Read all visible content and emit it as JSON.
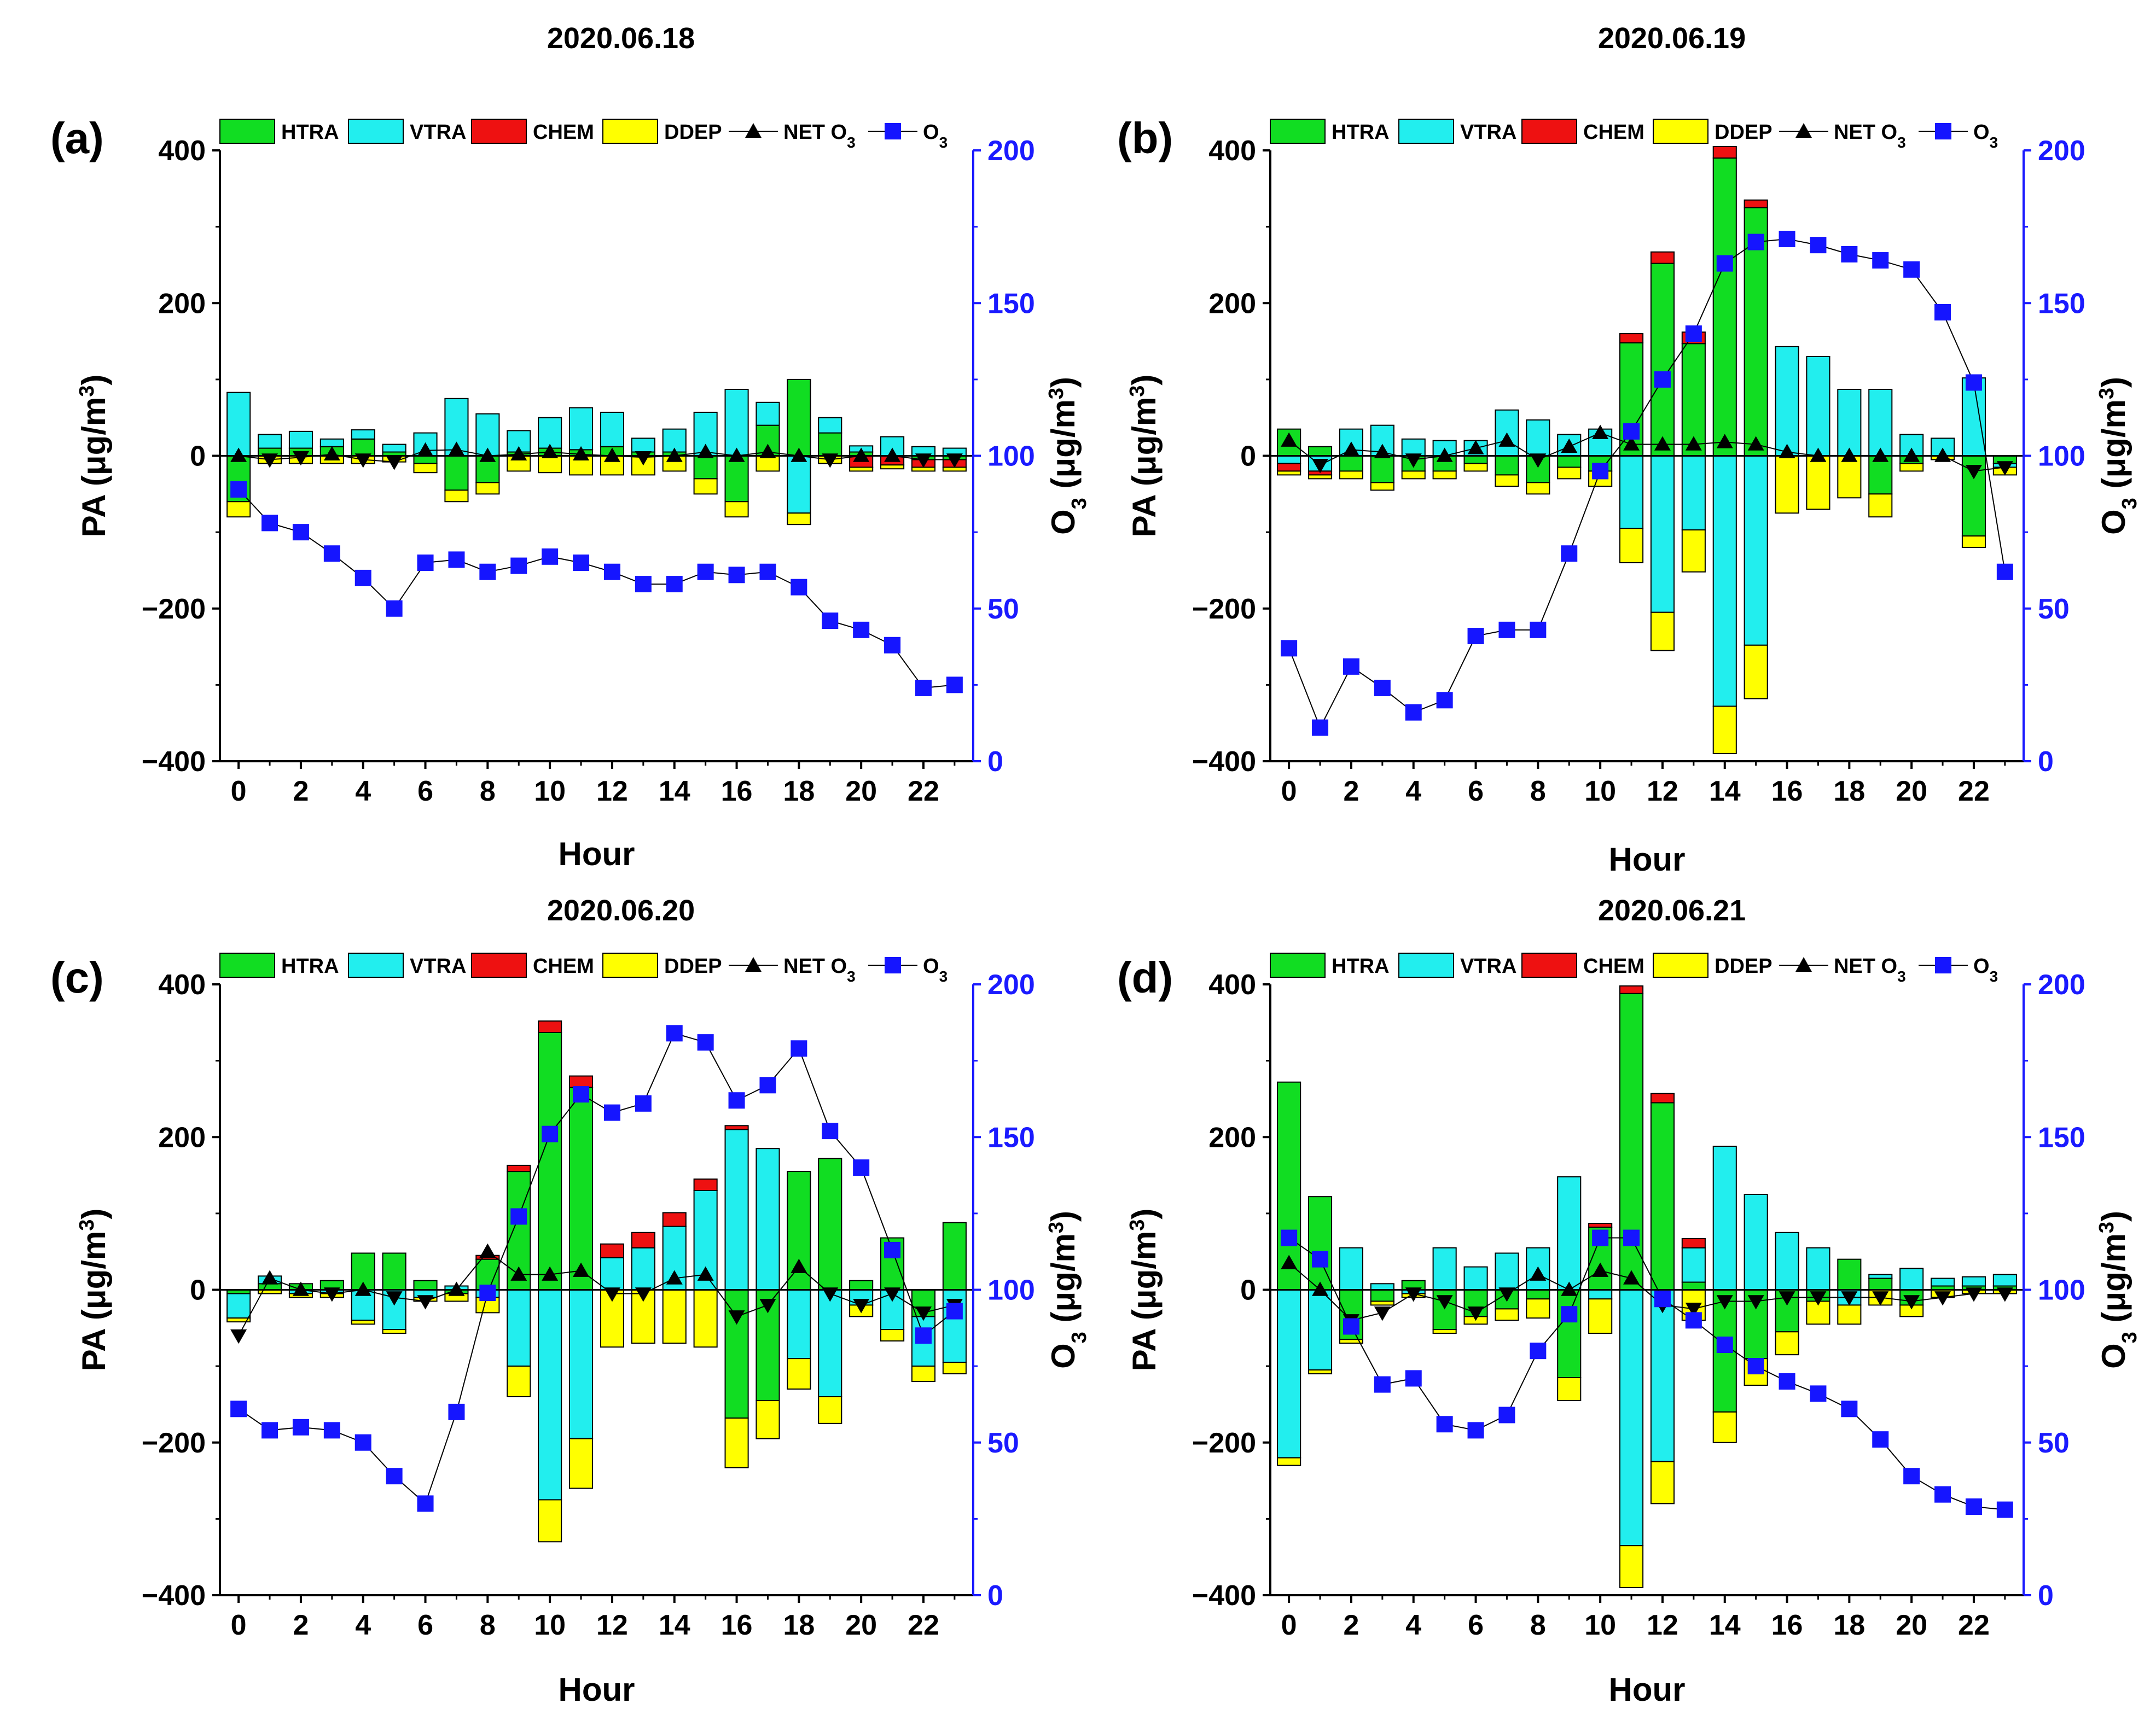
{
  "colors": {
    "HTRA": "#11dd22",
    "VTRA": "#22eeee",
    "CHEM": "#ee1111",
    "DDEP": "#ffff00",
    "NET": "#000000",
    "O3": "#1515ff",
    "axis_right": "#1a1aff"
  },
  "legend": {
    "htra": "HTRA",
    "vtra": "VTRA",
    "chem": "CHEM",
    "ddep": "DDEP",
    "net": "NET O",
    "o3": "O",
    "sub": "3"
  },
  "axes": {
    "left_label": "PA (μg/m",
    "left_sup": "3",
    "left_close": ")",
    "right_label": "O",
    "right_sub": "3",
    "right_mid": " (μg/m",
    "right_sup": "3",
    "right_close": ")",
    "xlabel": "Hour"
  },
  "chart_data": [
    {
      "type": "bar",
      "panel": "(a)",
      "title": "2020.06.18",
      "x": [
        0,
        1,
        2,
        3,
        4,
        5,
        6,
        7,
        8,
        9,
        10,
        11,
        12,
        13,
        14,
        15,
        16,
        17,
        18,
        19,
        20,
        21,
        22,
        23
      ],
      "xticks": [
        0,
        2,
        4,
        6,
        8,
        10,
        12,
        14,
        16,
        18,
        20,
        22
      ],
      "xlim": [
        -0.6,
        23.6
      ],
      "ylim": [
        -400,
        400
      ],
      "yticks": [
        -400,
        -200,
        0,
        200,
        400
      ],
      "ylim_right": [
        0,
        200
      ],
      "yticks_right": [
        0,
        50,
        100,
        150,
        200
      ],
      "series": [
        {
          "name": "HTRA",
          "values": [
            -60,
            10,
            10,
            12,
            22,
            5,
            -10,
            -45,
            -35,
            5,
            10,
            8,
            12,
            5,
            5,
            -30,
            -60,
            40,
            100,
            30,
            5,
            0,
            -5,
            -5
          ]
        },
        {
          "name": "VTRA",
          "values": [
            83,
            18,
            22,
            10,
            12,
            10,
            30,
            75,
            55,
            28,
            40,
            55,
            45,
            18,
            30,
            57,
            87,
            30,
            -75,
            20,
            8,
            25,
            12,
            10
          ]
        },
        {
          "name": "CHEM",
          "values": [
            0,
            0,
            0,
            0,
            0,
            0,
            0,
            0,
            0,
            0,
            0,
            0,
            0,
            0,
            0,
            0,
            0,
            0,
            0,
            0,
            -15,
            -12,
            -10,
            -10
          ]
        },
        {
          "name": "DDEP",
          "values": [
            -20,
            -10,
            -10,
            -10,
            -10,
            -8,
            -12,
            -15,
            -15,
            -20,
            -22,
            -25,
            -25,
            -25,
            -20,
            -20,
            -20,
            -20,
            -15,
            -10,
            -5,
            -5,
            -5,
            -5
          ]
        },
        {
          "name": "NET O3",
          "values": [
            0,
            -5,
            -2,
            2,
            -5,
            -8,
            7,
            8,
            0,
            2,
            5,
            2,
            0,
            -2,
            0,
            5,
            0,
            5,
            0,
            -5,
            0,
            0,
            -5,
            -5
          ]
        },
        {
          "name": "O3",
          "axis": "right",
          "values": [
            89,
            78,
            75,
            68,
            60,
            50,
            65,
            66,
            62,
            64,
            67,
            65,
            62,
            58,
            58,
            62,
            61,
            62,
            57,
            46,
            43,
            38,
            24,
            25
          ]
        }
      ]
    },
    {
      "type": "bar",
      "panel": "(b)",
      "title": "2020.06.19",
      "x": [
        0,
        1,
        2,
        3,
        4,
        5,
        6,
        7,
        8,
        9,
        10,
        11,
        12,
        13,
        14,
        15,
        16,
        17,
        18,
        19,
        20,
        21,
        22,
        23
      ],
      "xticks": [
        0,
        2,
        4,
        6,
        8,
        10,
        12,
        14,
        16,
        18,
        20,
        22
      ],
      "xlim": [
        -0.6,
        23.6
      ],
      "ylim": [
        -400,
        400
      ],
      "yticks": [
        -400,
        -200,
        0,
        200,
        400
      ],
      "ylim_right": [
        0,
        200
      ],
      "yticks_right": [
        0,
        50,
        100,
        150,
        200
      ],
      "series": [
        {
          "name": "HTRA",
          "values": [
            35,
            12,
            -20,
            -35,
            -20,
            -20,
            -10,
            -25,
            -35,
            -15,
            -20,
            148,
            252,
            147,
            390,
            325,
            0,
            0,
            0,
            -50,
            -10,
            0,
            -105,
            -10
          ]
        },
        {
          "name": "VTRA",
          "values": [
            -10,
            -20,
            35,
            40,
            22,
            20,
            20,
            60,
            47,
            28,
            35,
            -95,
            -205,
            -97,
            -328,
            -248,
            143,
            130,
            87,
            87,
            28,
            23,
            102,
            -5
          ]
        },
        {
          "name": "CHEM",
          "values": [
            -10,
            -5,
            0,
            0,
            0,
            0,
            0,
            0,
            0,
            0,
            0,
            12,
            15,
            15,
            15,
            10,
            0,
            0,
            0,
            0,
            0,
            0,
            0,
            0
          ]
        },
        {
          "name": "DDEP",
          "values": [
            -5,
            -5,
            -10,
            -10,
            -10,
            -10,
            -10,
            -15,
            -15,
            -15,
            -20,
            -45,
            -50,
            -55,
            -62,
            -70,
            -75,
            -70,
            -55,
            -30,
            -10,
            -5,
            -15,
            -10
          ]
        },
        {
          "name": "NET O3",
          "values": [
            20,
            -12,
            8,
            5,
            -5,
            0,
            10,
            20,
            -5,
            12,
            30,
            15,
            15,
            15,
            18,
            15,
            5,
            0,
            0,
            0,
            0,
            0,
            -20,
            -15
          ]
        },
        {
          "name": "O3",
          "axis": "right",
          "values": [
            37,
            11,
            31,
            24,
            16,
            20,
            41,
            43,
            43,
            68,
            95,
            108,
            125,
            140,
            163,
            170,
            171,
            169,
            166,
            164,
            161,
            147,
            124,
            62
          ]
        }
      ]
    },
    {
      "type": "bar",
      "panel": "(c)",
      "title": "2020.06.20",
      "x": [
        0,
        1,
        2,
        3,
        4,
        5,
        6,
        7,
        8,
        9,
        10,
        11,
        12,
        13,
        14,
        15,
        16,
        17,
        18,
        19,
        20,
        21,
        22,
        23
      ],
      "xticks": [
        0,
        2,
        4,
        6,
        8,
        10,
        12,
        14,
        16,
        18,
        20,
        22
      ],
      "xlim": [
        -0.6,
        23.6
      ],
      "ylim": [
        -400,
        400
      ],
      "yticks": [
        -400,
        -200,
        0,
        200,
        400
      ],
      "ylim_right": [
        0,
        200
      ],
      "yticks_right": [
        0,
        50,
        100,
        150,
        200
      ],
      "series": [
        {
          "name": "HTRA",
          "values": [
            -5,
            8,
            8,
            12,
            48,
            48,
            12,
            -5,
            40,
            155,
            337,
            265,
            0,
            0,
            0,
            0,
            -168,
            -145,
            155,
            172,
            12,
            68,
            -35,
            88
          ]
        },
        {
          "name": "VTRA",
          "values": [
            -32,
            10,
            -5,
            -5,
            -40,
            -52,
            -10,
            5,
            -10,
            -100,
            -275,
            -195,
            42,
            55,
            83,
            130,
            210,
            185,
            -90,
            -140,
            -20,
            -52,
            -65,
            -95
          ]
        },
        {
          "name": "CHEM",
          "values": [
            0,
            0,
            0,
            0,
            0,
            0,
            0,
            0,
            5,
            8,
            15,
            15,
            18,
            20,
            18,
            15,
            5,
            0,
            0,
            0,
            0,
            0,
            0,
            0
          ]
        },
        {
          "name": "DDEP",
          "values": [
            -5,
            -5,
            -5,
            -5,
            -5,
            -5,
            -5,
            -10,
            -20,
            -40,
            -55,
            -65,
            -75,
            -70,
            -70,
            -75,
            -65,
            -50,
            -40,
            -35,
            -15,
            -15,
            -20,
            -15
          ]
        },
        {
          "name": "NET O3",
          "values": [
            -60,
            15,
            0,
            -5,
            0,
            -10,
            -15,
            0,
            50,
            20,
            20,
            25,
            -5,
            -5,
            15,
            20,
            -35,
            -20,
            30,
            -5,
            -20,
            -5,
            -30,
            -20
          ]
        },
        {
          "name": "O3",
          "axis": "right",
          "values": [
            61,
            54,
            55,
            54,
            50,
            39,
            30,
            60,
            99,
            124,
            151,
            164,
            158,
            161,
            184,
            181,
            162,
            167,
            179,
            152,
            140,
            113,
            85,
            93
          ]
        }
      ]
    },
    {
      "type": "bar",
      "panel": "(d)",
      "title": "2020.06.21",
      "x": [
        0,
        1,
        2,
        3,
        4,
        5,
        6,
        7,
        8,
        9,
        10,
        11,
        12,
        13,
        14,
        15,
        16,
        17,
        18,
        19,
        20,
        21,
        22,
        23
      ],
      "xticks": [
        0,
        2,
        4,
        6,
        8,
        10,
        12,
        14,
        16,
        18,
        20,
        22
      ],
      "xlim": [
        -0.6,
        23.6
      ],
      "ylim": [
        -400,
        400
      ],
      "yticks": [
        -400,
        -200,
        0,
        200,
        400
      ],
      "ylim_right": [
        0,
        200
      ],
      "yticks_right": [
        0,
        50,
        100,
        150,
        200
      ],
      "series": [
        {
          "name": "HTRA",
          "values": [
            272,
            122,
            -65,
            -15,
            12,
            -52,
            -35,
            -25,
            -12,
            -115,
            82,
            388,
            245,
            10,
            -160,
            -90,
            -55,
            -15,
            40,
            15,
            -20,
            5,
            5,
            5
          ]
        },
        {
          "name": "VTRA",
          "values": [
            -220,
            -105,
            55,
            8,
            -5,
            55,
            30,
            48,
            55,
            148,
            -12,
            -335,
            -225,
            45,
            188,
            125,
            75,
            55,
            -20,
            5,
            28,
            10,
            12,
            15
          ]
        },
        {
          "name": "CHEM",
          "values": [
            0,
            0,
            0,
            0,
            0,
            0,
            0,
            0,
            0,
            0,
            5,
            10,
            12,
            12,
            0,
            0,
            0,
            0,
            0,
            0,
            0,
            0,
            0,
            0
          ]
        },
        {
          "name": "DDEP",
          "values": [
            -10,
            -5,
            -5,
            -5,
            -5,
            -5,
            -10,
            -15,
            -25,
            -30,
            -45,
            -55,
            -55,
            -40,
            -40,
            -35,
            -30,
            -30,
            -25,
            -20,
            -15,
            -10,
            -5,
            -5
          ]
        },
        {
          "name": "NET O3",
          "values": [
            35,
            0,
            -40,
            -30,
            -5,
            -15,
            -30,
            -5,
            20,
            0,
            25,
            15,
            -20,
            -25,
            -15,
            -15,
            -10,
            -10,
            -10,
            -10,
            -15,
            -10,
            -5,
            -5
          ]
        },
        {
          "name": "O3",
          "axis": "right",
          "values": [
            117,
            110,
            88,
            69,
            71,
            56,
            54,
            59,
            80,
            92,
            117,
            117,
            97,
            90,
            82,
            75,
            70,
            66,
            61,
            51,
            39,
            33,
            29,
            28
          ]
        }
      ]
    }
  ]
}
